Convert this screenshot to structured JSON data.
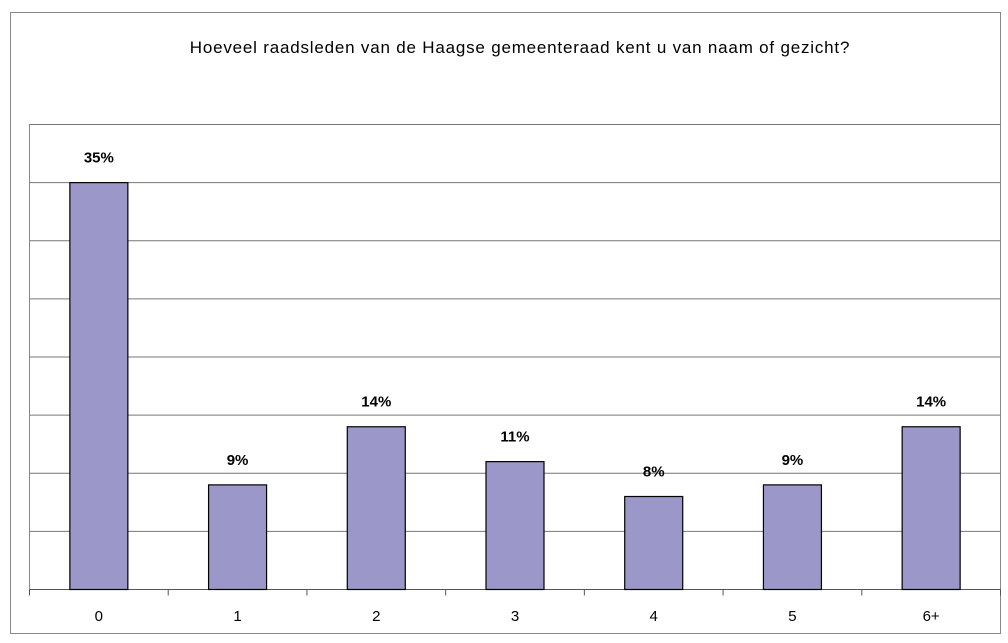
{
  "chart_data": {
    "type": "bar",
    "title": "Hoeveel raadsleden van de Haagse gemeenteraad kent u van naam of gezicht?",
    "categories": [
      "0",
      "1",
      "2",
      "3",
      "4",
      "5",
      "6+"
    ],
    "values": [
      35,
      9,
      14,
      11,
      8,
      9,
      14
    ],
    "value_labels": [
      "35%",
      "9%",
      "14%",
      "11%",
      "8%",
      "9%",
      "14%"
    ],
    "color": "#9b97c9",
    "ylim": [
      0,
      40
    ],
    "yticks": [
      0,
      5,
      10,
      15,
      20,
      25,
      30,
      35,
      40
    ],
    "grid": true
  }
}
